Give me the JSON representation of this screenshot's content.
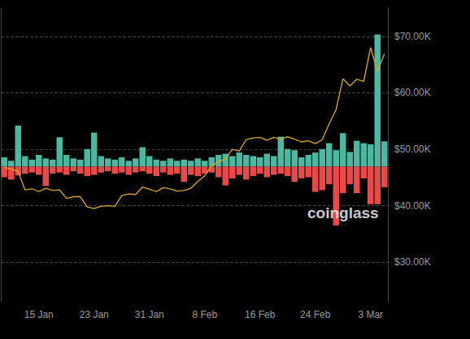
{
  "chart_data": {
    "type": "bar",
    "annotations": [
      "coinglass"
    ],
    "categories": [
      null,
      null,
      null,
      null,
      null,
      "15 Jan",
      null,
      null,
      null,
      null,
      null,
      null,
      null,
      "23 Jan",
      null,
      null,
      null,
      null,
      null,
      null,
      null,
      "31 Jan",
      null,
      null,
      null,
      null,
      null,
      null,
      null,
      "8 Feb",
      null,
      null,
      null,
      null,
      null,
      null,
      null,
      "16 Feb",
      null,
      null,
      null,
      null,
      null,
      null,
      null,
      "24 Feb",
      null,
      null,
      null,
      null,
      null,
      null,
      null,
      "3 Mar",
      null,
      null
    ],
    "stacked": true,
    "grid": true,
    "series": [
      {
        "type": "bar",
        "axis": "y2",
        "color": "#4cb8a2",
        "values": [
          16,
          10,
          70,
          18,
          12,
          20,
          14,
          12,
          50,
          20,
          14,
          12,
          30,
          58,
          18,
          14,
          12,
          16,
          10,
          14,
          33,
          18,
          12,
          10,
          14,
          10,
          12,
          10,
          14,
          10,
          16,
          20,
          22,
          18,
          24,
          20,
          18,
          16,
          22,
          18,
          51,
          30,
          28,
          16,
          20,
          24,
          30,
          40,
          28,
          57,
          25,
          44,
          40,
          38,
          225,
          43
        ]
      },
      {
        "type": "bar",
        "axis": "y2",
        "color": "#e84a4a",
        "values": [
          -18,
          -22,
          -15,
          -12,
          -10,
          -14,
          -33,
          -12,
          -10,
          -14,
          -8,
          -12,
          -16,
          -14,
          -10,
          -8,
          -12,
          -10,
          -14,
          -10,
          -8,
          -12,
          -16,
          -10,
          -14,
          -12,
          -26,
          -14,
          -16,
          -12,
          -10,
          -18,
          -32,
          -20,
          -14,
          -22,
          -16,
          -12,
          -18,
          -14,
          -12,
          -16,
          -26,
          -20,
          -18,
          -43,
          -40,
          -30,
          -100,
          -45,
          -30,
          -45,
          -20,
          -64,
          -64,
          -35
        ]
      },
      {
        "type": "line",
        "axis": "y",
        "color": "#d9a826",
        "line_style": "solid",
        "values": [
          46800,
          46500,
          46100,
          42800,
          43000,
          42500,
          43100,
          42700,
          42800,
          41300,
          41600,
          41600,
          39800,
          39500,
          39900,
          40000,
          39900,
          41800,
          42100,
          42000,
          43300,
          42900,
          42500,
          43200,
          43000,
          42600,
          42700,
          43100,
          44300,
          45300,
          47100,
          47800,
          48300,
          50000,
          49700,
          51700,
          52000,
          52100,
          51600,
          52100,
          51800,
          52200,
          51800,
          51300,
          51500,
          51000,
          51700,
          54500,
          57000,
          62500,
          61200,
          62400,
          62000,
          68000,
          63800,
          66900
        ]
      }
    ],
    "ylim": [
      23000,
      75000
    ],
    "yticks": [
      {
        "value": 30000,
        "label": "$30.00K"
      },
      {
        "value": 40000,
        "label": "$40.00K"
      },
      {
        "value": 50000,
        "label": "$50.00K"
      },
      {
        "value": 60000,
        "label": "$60.00K"
      },
      {
        "value": 70000,
        "label": "$70.00K"
      }
    ],
    "y2lim": [
      -230,
      270
    ]
  }
}
